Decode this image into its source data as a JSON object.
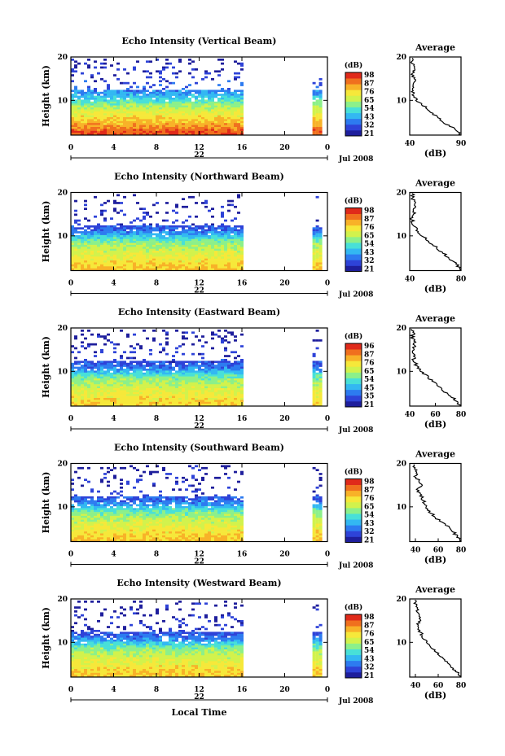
{
  "figure": {
    "bottom_label": "Local Time",
    "common": {
      "ylabel": "Height (km)",
      "yticks": [
        "20",
        "10"
      ],
      "xticks": [
        "0",
        "4",
        "8",
        "12",
        "16",
        "20",
        "0"
      ],
      "date_label": "22",
      "month_label": "Jul 2008",
      "cbar_unit": "(dB)",
      "avg_title": "Average",
      "avg_xlabel": "(dB)",
      "avg_yticks": [
        "20",
        "10"
      ]
    },
    "colorscale": [
      "#1e1e9c",
      "#2e43d8",
      "#2d7bf0",
      "#33b8f2",
      "#48e0d8",
      "#8cf08a",
      "#d2f24c",
      "#f6e83a",
      "#f8b228",
      "#f0701e",
      "#e02a1a"
    ],
    "panels": [
      {
        "title": "Echo Intensity (Vertical Beam)",
        "cbar_ticks": [
          "98",
          "87",
          "76",
          "65",
          "54",
          "43",
          "32",
          "21"
        ],
        "avg_xticks": [
          "40",
          "90"
        ]
      },
      {
        "title": "Echo Intensity (Northward Beam)",
        "cbar_ticks": [
          "98",
          "87",
          "76",
          "65",
          "54",
          "43",
          "32",
          "21"
        ],
        "avg_xticks": [
          "40",
          "80"
        ]
      },
      {
        "title": "Echo Intensity (Eastward Beam)",
        "cbar_ticks": [
          "96",
          "87",
          "76",
          "65",
          "54",
          "45",
          "35",
          "21"
        ],
        "avg_xticks": [
          "40",
          "60",
          "80"
        ]
      },
      {
        "title": "Echo Intensity (Southward Beam)",
        "cbar_ticks": [
          "98",
          "87",
          "76",
          "65",
          "54",
          "43",
          "32",
          "21"
        ],
        "avg_xticks": [
          "40",
          "60",
          "80"
        ]
      },
      {
        "title": "Echo Intensity (Westward Beam)",
        "cbar_ticks": [
          "98",
          "87",
          "76",
          "65",
          "54",
          "43",
          "32",
          "21"
        ],
        "avg_xticks": [
          "40",
          "60",
          "80"
        ]
      }
    ]
  },
  "chart_data": [
    {
      "type": "heatmap",
      "title": "Echo Intensity (Vertical Beam)",
      "xlabel": "Local Time",
      "ylabel": "Height (km)",
      "colorbar": {
        "label": "(dB)",
        "ticks": [
          98,
          87,
          76,
          65,
          54,
          43,
          32,
          21
        ],
        "range": [
          21,
          98
        ]
      },
      "xlim": [
        0,
        24
      ],
      "ylim": [
        2,
        20
      ],
      "data_segments_hours": [
        [
          0,
          16
        ],
        [
          22.6,
          23.5
        ]
      ],
      "z_profile_by_height": {
        "height_km": [
          3,
          5,
          7,
          9,
          11,
          13,
          15,
          17,
          19
        ],
        "db": [
          90,
          80,
          72,
          62,
          48,
          35,
          30,
          28,
          26
        ]
      },
      "average_profile": {
        "title": "Average",
        "xlabel": "(dB)",
        "xlim": [
          40,
          90
        ],
        "height_km": [
          2,
          3,
          4,
          5,
          6,
          7,
          8,
          9,
          10,
          11,
          12,
          13,
          14,
          15,
          16,
          17,
          18,
          19,
          20
        ],
        "db": [
          90,
          86,
          80,
          72,
          68,
          62,
          58,
          52,
          47,
          44,
          43,
          43,
          44,
          45,
          42,
          45,
          44,
          42,
          44
        ]
      }
    },
    {
      "type": "heatmap",
      "title": "Echo Intensity (Northward Beam)",
      "xlabel": "Local Time",
      "ylabel": "Height (km)",
      "colorbar": {
        "label": "(dB)",
        "ticks": [
          98,
          87,
          76,
          65,
          54,
          43,
          32,
          21
        ],
        "range": [
          21,
          98
        ]
      },
      "xlim": [
        0,
        24
      ],
      "ylim": [
        2,
        20
      ],
      "data_segments_hours": [
        [
          0,
          16
        ],
        [
          22.6,
          23.5
        ]
      ],
      "z_profile_by_height": {
        "height_km": [
          3,
          5,
          7,
          9,
          11,
          13,
          15,
          17,
          19
        ],
        "db": [
          78,
          72,
          66,
          58,
          40,
          30,
          28,
          26,
          25
        ]
      },
      "average_profile": {
        "title": "Average",
        "xlabel": "(dB)",
        "xlim": [
          40,
          80
        ],
        "height_km": [
          2,
          3,
          4,
          5,
          6,
          7,
          8,
          9,
          10,
          11,
          12,
          13,
          14,
          15,
          16,
          17,
          18,
          19,
          20
        ],
        "db": [
          80,
          78,
          74,
          70,
          66,
          62,
          58,
          54,
          50,
          46,
          44,
          42,
          42,
          44,
          43,
          45,
          43,
          42,
          43
        ]
      }
    },
    {
      "type": "heatmap",
      "title": "Echo Intensity (Eastward Beam)",
      "xlabel": "Local Time",
      "ylabel": "Height (km)",
      "colorbar": {
        "label": "(dB)",
        "ticks": [
          96,
          87,
          76,
          65,
          54,
          45,
          35,
          21
        ],
        "range": [
          21,
          96
        ]
      },
      "xlim": [
        0,
        24
      ],
      "ylim": [
        2,
        20
      ],
      "data_segments_hours": [
        [
          0,
          16
        ],
        [
          22.6,
          23.5
        ]
      ],
      "z_profile_by_height": {
        "height_km": [
          3,
          5,
          7,
          9,
          11,
          13,
          15,
          17,
          19
        ],
        "db": [
          74,
          70,
          64,
          56,
          38,
          30,
          28,
          26,
          25
        ]
      },
      "average_profile": {
        "title": "Average",
        "xlabel": "(dB)",
        "xlim": [
          40,
          80
        ],
        "height_km": [
          2,
          3,
          4,
          5,
          6,
          7,
          8,
          9,
          10,
          11,
          12,
          13,
          14,
          15,
          16,
          17,
          18,
          19,
          20
        ],
        "db": [
          80,
          77,
          73,
          69,
          65,
          61,
          57,
          53,
          49,
          46,
          44,
          43,
          43,
          42,
          44,
          43,
          42,
          43,
          42
        ]
      }
    },
    {
      "type": "heatmap",
      "title": "Echo Intensity (Southward Beam)",
      "xlabel": "Local Time",
      "ylabel": "Height (km)",
      "colorbar": {
        "label": "(dB)",
        "ticks": [
          98,
          87,
          76,
          65,
          54,
          43,
          32,
          21
        ],
        "range": [
          21,
          98
        ]
      },
      "xlim": [
        0,
        24
      ],
      "ylim": [
        2,
        20
      ],
      "data_segments_hours": [
        [
          0,
          16
        ],
        [
          22.6,
          23.5
        ]
      ],
      "z_profile_by_height": {
        "height_km": [
          3,
          5,
          7,
          9,
          11,
          13,
          15,
          17,
          19
        ],
        "db": [
          78,
          72,
          66,
          58,
          40,
          30,
          28,
          26,
          25
        ]
      },
      "average_profile": {
        "title": "Average",
        "xlabel": "(dB)",
        "xlim": [
          35,
          80
        ],
        "height_km": [
          2,
          3,
          4,
          5,
          6,
          7,
          8,
          9,
          10,
          11,
          12,
          13,
          14,
          15,
          16,
          17,
          18,
          19,
          20
        ],
        "db": [
          80,
          77,
          74,
          70,
          66,
          60,
          56,
          52,
          50,
          48,
          46,
          44,
          42,
          45,
          43,
          40,
          42,
          39,
          40
        ]
      }
    },
    {
      "type": "heatmap",
      "title": "Echo Intensity (Westward Beam)",
      "xlabel": "Local Time",
      "ylabel": "Height (km)",
      "colorbar": {
        "label": "(dB)",
        "ticks": [
          98,
          87,
          76,
          65,
          54,
          43,
          32,
          21
        ],
        "range": [
          21,
          98
        ]
      },
      "xlim": [
        0,
        24
      ],
      "ylim": [
        2,
        20
      ],
      "data_segments_hours": [
        [
          0,
          16
        ],
        [
          22.6,
          23.5
        ]
      ],
      "z_profile_by_height": {
        "height_km": [
          3,
          5,
          7,
          9,
          11,
          13,
          15,
          17,
          19
        ],
        "db": [
          78,
          72,
          66,
          58,
          40,
          30,
          28,
          26,
          25
        ]
      },
      "average_profile": {
        "title": "Average",
        "xlabel": "(dB)",
        "xlim": [
          35,
          80
        ],
        "height_km": [
          2,
          3,
          4,
          5,
          6,
          7,
          8,
          9,
          10,
          11,
          12,
          13,
          14,
          15,
          16,
          17,
          18,
          19,
          20
        ],
        "db": [
          80,
          77,
          73,
          69,
          65,
          61,
          57,
          53,
          50,
          47,
          45,
          43,
          42,
          44,
          43,
          41,
          42,
          40,
          41
        ]
      }
    }
  ]
}
